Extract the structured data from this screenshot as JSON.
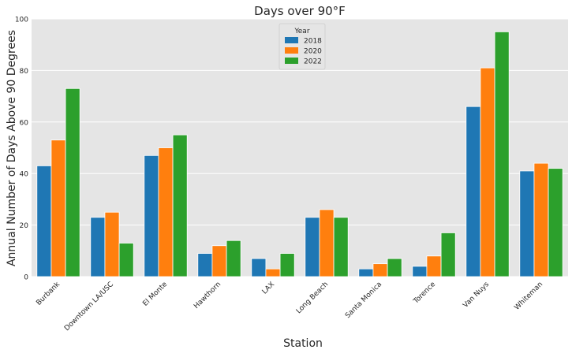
{
  "chart_data": {
    "type": "bar",
    "title": "Days over 90°F",
    "xlabel": "Station",
    "ylabel": "Annual Number of Days Above 90 Degrees",
    "ylim": [
      0,
      100
    ],
    "yticks": [
      0,
      20,
      40,
      60,
      80,
      100
    ],
    "grid": true,
    "legend": {
      "title": "Year",
      "placement": "top-center"
    },
    "categories": [
      "Burbank",
      "Downtown LA/USC",
      "El Monte",
      "Hawthorn",
      "LAX",
      "Long Beach",
      "Santa Monica",
      "Torence",
      "Van Nuys",
      "Whiteman"
    ],
    "series": [
      {
        "name": "2018",
        "color": "#1f77b4",
        "values": [
          43,
          23,
          47,
          9,
          7,
          23,
          3,
          4,
          66,
          41
        ]
      },
      {
        "name": "2020",
        "color": "#ff7f0e",
        "values": [
          53,
          25,
          50,
          12,
          3,
          26,
          5,
          8,
          81,
          44
        ]
      },
      {
        "name": "2022",
        "color": "#2ca02c",
        "values": [
          73,
          13,
          55,
          14,
          9,
          23,
          7,
          17,
          95,
          42
        ]
      }
    ]
  }
}
